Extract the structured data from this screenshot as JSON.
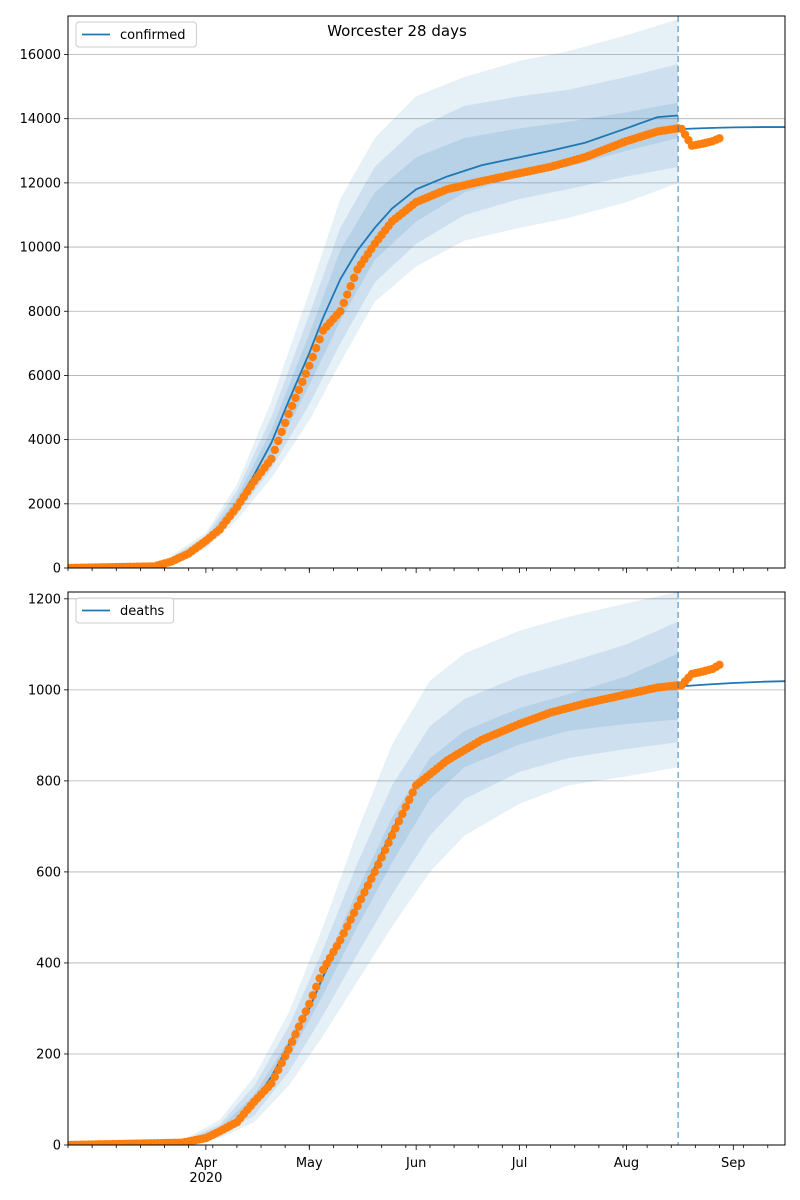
{
  "title": "Worcester 28 days",
  "colors": {
    "model": "#1f77b4",
    "observed": "#ff7f0e",
    "band": "#1f77b4",
    "vline": "#1f77b4",
    "grid": "#b0b0b0"
  },
  "x_axis": {
    "date_range": [
      "2020-02-21",
      "2020-09-16"
    ],
    "months": [
      {
        "date": "2020-04-01",
        "label": "Apr",
        "sub": "2020"
      },
      {
        "date": "2020-05-01",
        "label": "May",
        "sub": ""
      },
      {
        "date": "2020-06-01",
        "label": "Jun",
        "sub": ""
      },
      {
        "date": "2020-07-01",
        "label": "Jul",
        "sub": ""
      },
      {
        "date": "2020-08-01",
        "label": "Aug",
        "sub": ""
      },
      {
        "date": "2020-09-01",
        "label": "Sep",
        "sub": ""
      }
    ]
  },
  "forecast_date": "2020-08-16",
  "chart_data": [
    {
      "type": "line",
      "name": "confirmed",
      "legend": "confirmed",
      "legend_position": "top-left",
      "grid": "y",
      "ylim": [
        0,
        17200
      ],
      "yticks": [
        0,
        2000,
        4000,
        6000,
        8000,
        10000,
        12000,
        14000,
        16000
      ],
      "model_fit": {
        "x": [
          "2020-02-21",
          "2020-03-15",
          "2020-03-20",
          "2020-03-25",
          "2020-04-01",
          "2020-04-05",
          "2020-04-10",
          "2020-04-15",
          "2020-04-20",
          "2020-04-25",
          "2020-05-01",
          "2020-05-05",
          "2020-05-10",
          "2020-05-15",
          "2020-05-20",
          "2020-05-25",
          "2020-06-01",
          "2020-06-10",
          "2020-06-20",
          "2020-07-01",
          "2020-07-10",
          "2020-07-20",
          "2020-08-01",
          "2020-08-10",
          "2020-08-16"
        ],
        "y": [
          0,
          30,
          120,
          350,
          800,
          1200,
          2000,
          2900,
          3900,
          5200,
          6700,
          7800,
          9000,
          9900,
          10600,
          11200,
          11800,
          12200,
          12550,
          12800,
          13000,
          13250,
          13700,
          14050,
          14100
        ]
      },
      "model_projection": {
        "x": [
          "2020-08-17",
          "2020-08-25",
          "2020-09-01",
          "2020-09-10",
          "2020-09-16"
        ],
        "y": [
          13680,
          13710,
          13730,
          13740,
          13740
        ]
      },
      "bands": [
        {
          "x": [
            "2020-03-20",
            "2020-04-01",
            "2020-04-10",
            "2020-04-20",
            "2020-05-01",
            "2020-05-10",
            "2020-05-20",
            "2020-06-01",
            "2020-06-15",
            "2020-07-01",
            "2020-07-15",
            "2020-08-01",
            "2020-08-16"
          ],
          "lower": [
            60,
            600,
            1500,
            2800,
            4600,
            6400,
            8300,
            9400,
            10200,
            10600,
            10900,
            11400,
            12000
          ],
          "upper": [
            250,
            1100,
            2600,
            5200,
            8600,
            11500,
            13400,
            14700,
            15300,
            15800,
            16100,
            16600,
            17100
          ]
        },
        {
          "x": [
            "2020-03-20",
            "2020-04-01",
            "2020-04-10",
            "2020-04-20",
            "2020-05-01",
            "2020-05-10",
            "2020-05-20",
            "2020-06-01",
            "2020-06-15",
            "2020-07-01",
            "2020-07-15",
            "2020-08-01",
            "2020-08-16"
          ],
          "lower": [
            80,
            650,
            1650,
            3100,
            5100,
            7000,
            8900,
            10100,
            11000,
            11500,
            11800,
            12200,
            12500
          ],
          "upper": [
            200,
            1000,
            2400,
            4700,
            7900,
            10600,
            12500,
            13700,
            14400,
            14700,
            14900,
            15300,
            15700
          ]
        },
        {
          "x": [
            "2020-03-20",
            "2020-04-01",
            "2020-04-10",
            "2020-04-20",
            "2020-05-01",
            "2020-05-10",
            "2020-05-20",
            "2020-06-01",
            "2020-06-15",
            "2020-07-01",
            "2020-07-15",
            "2020-08-01",
            "2020-08-16"
          ],
          "lower": [
            100,
            700,
            1800,
            3400,
            5700,
            7700,
            9600,
            10800,
            11700,
            12200,
            12500,
            13000,
            13400
          ],
          "upper": [
            160,
            900,
            2200,
            4300,
            7300,
            9900,
            11700,
            12800,
            13400,
            13700,
            13900,
            14200,
            14500
          ]
        }
      ],
      "observed_fit": {
        "x": [
          "2020-02-21",
          "2020-03-17",
          "2020-03-22",
          "2020-03-27",
          "2020-04-01",
          "2020-04-05",
          "2020-04-10",
          "2020-04-15",
          "2020-04-20",
          "2020-04-25",
          "2020-05-01",
          "2020-05-05",
          "2020-05-10",
          "2020-05-15",
          "2020-05-20",
          "2020-05-25",
          "2020-06-01",
          "2020-06-10",
          "2020-06-20",
          "2020-07-01",
          "2020-07-10",
          "2020-07-20",
          "2020-08-01",
          "2020-08-10",
          "2020-08-16"
        ],
        "y": [
          0,
          50,
          200,
          450,
          850,
          1200,
          1900,
          2700,
          3400,
          4800,
          6300,
          7400,
          8000,
          9300,
          10100,
          10800,
          11400,
          11800,
          12050,
          12300,
          12500,
          12800,
          13300,
          13600,
          13700
        ]
      },
      "observed_after": {
        "x": [
          "2020-08-17",
          "2020-08-20",
          "2020-08-23",
          "2020-08-26",
          "2020-08-28"
        ],
        "y": [
          13680,
          13160,
          13220,
          13300,
          13390
        ]
      }
    },
    {
      "type": "line",
      "name": "deaths",
      "legend": "deaths",
      "legend_position": "top-left",
      "grid": "y",
      "ylim": [
        0,
        1215
      ],
      "yticks": [
        0,
        200,
        400,
        600,
        800,
        1000,
        1200
      ],
      "model_fit": {
        "x": [
          "2020-02-21",
          "2020-03-25",
          "2020-04-01",
          "2020-04-05",
          "2020-04-10",
          "2020-04-15",
          "2020-04-20",
          "2020-04-25",
          "2020-05-01",
          "2020-05-05",
          "2020-05-10",
          "2020-05-15",
          "2020-05-20",
          "2020-05-25",
          "2020-06-01",
          "2020-06-10",
          "2020-06-20",
          "2020-07-01",
          "2020-07-10",
          "2020-07-20",
          "2020-08-01",
          "2020-08-10",
          "2020-08-16"
        ],
        "y": [
          0,
          5,
          15,
          30,
          55,
          95,
          150,
          220,
          300,
          370,
          450,
          530,
          610,
          690,
          790,
          850,
          890,
          920,
          945,
          965,
          990,
          1005,
          1010
        ]
      },
      "model_projection": {
        "x": [
          "2020-08-17",
          "2020-08-25",
          "2020-09-01",
          "2020-09-10",
          "2020-09-16"
        ],
        "y": [
          1008,
          1012,
          1015,
          1018,
          1019
        ]
      },
      "bands": [
        {
          "x": [
            "2020-03-25",
            "2020-04-05",
            "2020-04-15",
            "2020-04-25",
            "2020-05-05",
            "2020-05-15",
            "2020-05-25",
            "2020-06-05",
            "2020-06-15",
            "2020-07-01",
            "2020-07-15",
            "2020-08-01",
            "2020-08-16"
          ],
          "lower": [
            3,
            15,
            50,
            130,
            240,
            360,
            480,
            600,
            680,
            750,
            790,
            810,
            830
          ],
          "upper": [
            10,
            55,
            150,
            290,
            480,
            690,
            880,
            1020,
            1080,
            1130,
            1160,
            1190,
            1215
          ]
        },
        {
          "x": [
            "2020-03-25",
            "2020-04-05",
            "2020-04-15",
            "2020-04-25",
            "2020-05-05",
            "2020-05-15",
            "2020-05-25",
            "2020-06-05",
            "2020-06-15",
            "2020-07-01",
            "2020-07-15",
            "2020-08-01",
            "2020-08-16"
          ],
          "lower": [
            4,
            20,
            65,
            160,
            285,
            420,
            550,
            680,
            760,
            820,
            850,
            870,
            885
          ],
          "upper": [
            8,
            45,
            130,
            260,
            430,
            620,
            790,
            920,
            980,
            1030,
            1060,
            1100,
            1150
          ]
        },
        {
          "x": [
            "2020-03-25",
            "2020-04-05",
            "2020-04-15",
            "2020-04-25",
            "2020-05-05",
            "2020-05-15",
            "2020-05-25",
            "2020-06-05",
            "2020-06-15",
            "2020-07-01",
            "2020-07-15",
            "2020-08-01",
            "2020-08-16"
          ],
          "lower": [
            5,
            25,
            80,
            190,
            330,
            480,
            620,
            760,
            830,
            880,
            910,
            925,
            935
          ],
          "upper": [
            7,
            38,
            110,
            230,
            390,
            560,
            720,
            850,
            910,
            960,
            990,
            1030,
            1080
          ]
        }
      ],
      "observed_fit": {
        "x": [
          "2020-02-21",
          "2020-03-25",
          "2020-04-01",
          "2020-04-05",
          "2020-04-10",
          "2020-04-15",
          "2020-04-20",
          "2020-04-25",
          "2020-05-01",
          "2020-05-05",
          "2020-05-10",
          "2020-05-15",
          "2020-05-20",
          "2020-05-25",
          "2020-06-01",
          "2020-06-10",
          "2020-06-20",
          "2020-07-01",
          "2020-07-10",
          "2020-07-20",
          "2020-08-01",
          "2020-08-10",
          "2020-08-16"
        ],
        "y": [
          0,
          5,
          15,
          30,
          50,
          95,
          135,
          210,
          310,
          385,
          450,
          525,
          600,
          680,
          790,
          845,
          890,
          925,
          950,
          970,
          990,
          1005,
          1010
        ]
      },
      "observed_after": {
        "x": [
          "2020-08-17",
          "2020-08-20",
          "2020-08-23",
          "2020-08-26",
          "2020-08-28"
        ],
        "y": [
          1010,
          1035,
          1040,
          1046,
          1055
        ]
      }
    }
  ]
}
